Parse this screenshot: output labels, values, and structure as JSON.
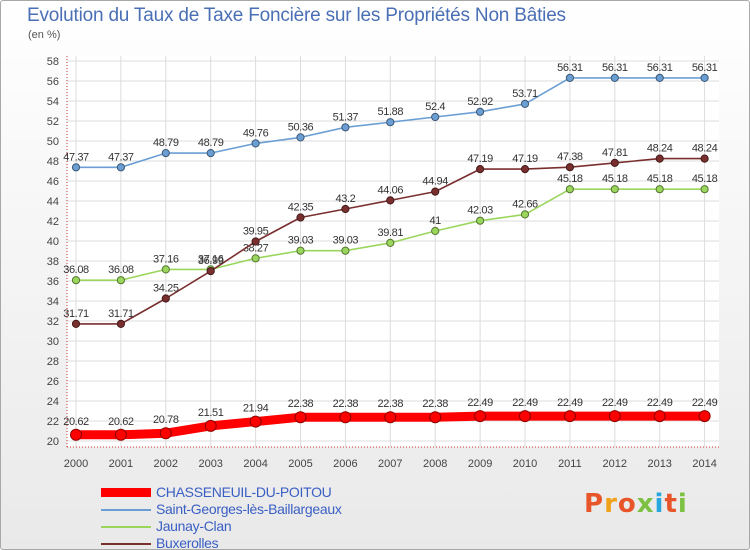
{
  "title": "Evolution du Taux de Taxe Foncière sur les Propriétés Non Bâties",
  "unit_label": "(en %)",
  "logo_text": "Proxiti",
  "logo_colors": [
    "#e8552a",
    "#f0a21a",
    "#e8552a",
    "#7cc142",
    "#2aa6df",
    "#e8552a",
    "#7cc142"
  ],
  "chart_data": {
    "type": "line",
    "x": [
      "2000",
      "2001",
      "2002",
      "2003",
      "2004",
      "2005",
      "2006",
      "2007",
      "2008",
      "2009",
      "2010",
      "2011",
      "2012",
      "2013",
      "2014"
    ],
    "ylim": [
      20,
      58
    ],
    "yticks": [
      20,
      22,
      24,
      26,
      28,
      30,
      32,
      34,
      36,
      38,
      40,
      42,
      44,
      46,
      48,
      50,
      52,
      54,
      56,
      58
    ],
    "grid": true,
    "legend_position": "bottom-left",
    "series": [
      {
        "name": "Saint-Georges-lès-Baillargeaux",
        "color": "#6b9fd4",
        "values": [
          47.37,
          47.37,
          48.79,
          48.79,
          49.76,
          50.36,
          51.37,
          51.88,
          52.4,
          52.92,
          53.71,
          56.31,
          56.31,
          56.31,
          56.31
        ],
        "labels": [
          "47.37",
          "47.37",
          "48.79",
          "48.79",
          "49.76",
          "50.36",
          "51.37",
          "51.88",
          "52.4",
          "52.92",
          "53.71",
          "56.31",
          "56.31",
          "56.31",
          "56.31"
        ]
      },
      {
        "name": "Jaunay-Clan",
        "color": "#9ad65c",
        "values": [
          36.08,
          36.08,
          37.16,
          37.16,
          38.27,
          39.03,
          39.03,
          39.81,
          41,
          42.03,
          42.66,
          45.18,
          45.18,
          45.18,
          45.18
        ],
        "labels": [
          "36.08",
          "36.08",
          "37.16",
          "37.16",
          "38.27",
          "39.03",
          "39.03",
          "39.81",
          "41",
          "42.03",
          "42.66",
          "45.18",
          "45.18",
          "45.18",
          "45.18"
        ]
      },
      {
        "name": "Buxerolles",
        "color": "#7a2f2f",
        "values": [
          31.71,
          31.71,
          34.25,
          36.99,
          39.95,
          42.35,
          43.2,
          44.06,
          44.94,
          47.19,
          47.19,
          47.38,
          47.81,
          48.24,
          48.24
        ],
        "labels": [
          "31.71",
          "31.71",
          "34.25",
          "36.99",
          "39.95",
          "42.35",
          "43.2",
          "44.06",
          "44.94",
          "47.19",
          "47.19",
          "47.38",
          "47.81",
          "48.24",
          "48.24"
        ]
      },
      {
        "name": "CHASSENEUIL-DU-POITOU",
        "color": "#ff0000",
        "values": [
          20.62,
          20.62,
          20.78,
          21.51,
          21.94,
          22.38,
          22.38,
          22.38,
          22.38,
          22.49,
          22.49,
          22.49,
          22.49,
          22.49,
          22.49
        ],
        "labels": [
          "20.62",
          "20.62",
          "20.78",
          "21.51",
          "21.94",
          "22.38",
          "22.38",
          "22.38",
          "22.38",
          "22.49",
          "22.49",
          "22.49",
          "22.49",
          "22.49",
          "22.49"
        ]
      }
    ]
  }
}
